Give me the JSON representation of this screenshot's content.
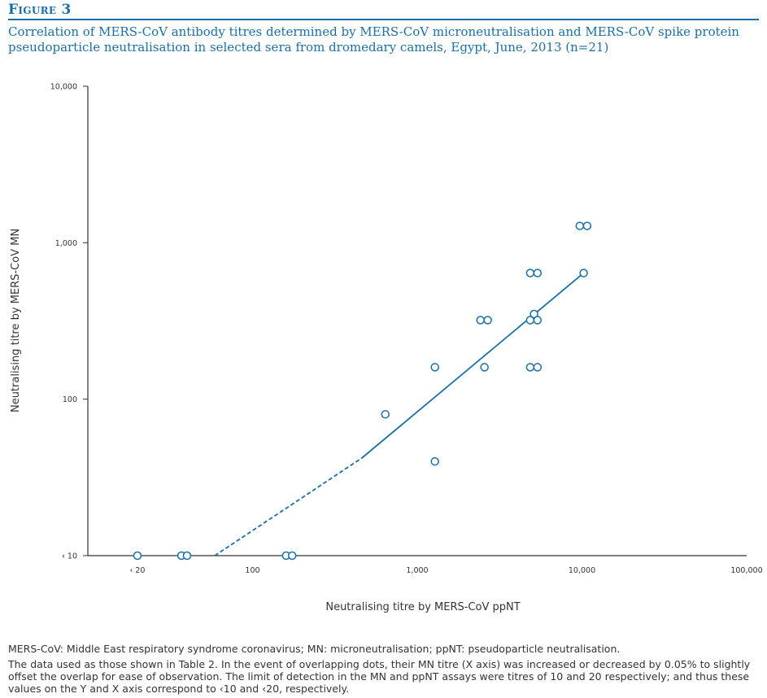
{
  "figure": {
    "label": "Figure 3",
    "caption": "Correlation of MERS-CoV antibody titres determined by MERS-CoV microneutralisation and MERS-CoV spike protein pseudoparticle neutralisation in selected sera from dromedary camels, Egypt, June, 2013 (n=21)"
  },
  "footnotes": {
    "abbreviations": "MERS-CoV: Middle East respiratory syndrome coronavirus; MN: microneutralisation; ppNT: pseudoparticle neutralisation.",
    "data_note": "The data used as those shown in Table 2. In the event of overlapping dots, their MN titre (X axis) was increased or decreased by 0.05% to slightly offset the overlap for ease of observation. The limit of detection in the MN and ppNT assays were titres of 10 and 20 respectively; and thus these values on the Y and X axis correspond to ‹10 and ‹20, respectively."
  },
  "colors": {
    "accent": "#1a6fa6",
    "axis": "#333333",
    "text": "#333333"
  },
  "chart_data": {
    "type": "scatter",
    "xlabel": "Neutralising titre by MERS-CoV ppNT",
    "ylabel": "Neutralising titre by MERS-CoV MN",
    "xscale": "log",
    "yscale": "log",
    "xlim": [
      10,
      100000
    ],
    "ylim": [
      10,
      10000
    ],
    "x_ticks": [
      {
        "value": 20,
        "label": "‹ 20"
      },
      {
        "value": 100,
        "label": "100"
      },
      {
        "value": 1000,
        "label": "1,000"
      },
      {
        "value": 10000,
        "label": "10,000"
      },
      {
        "value": 100000,
        "label": "100,000"
      }
    ],
    "y_ticks": [
      {
        "value": 10,
        "label": "‹ 10"
      },
      {
        "value": 100,
        "label": "100"
      },
      {
        "value": 1000,
        "label": "1,000"
      },
      {
        "value": 10000,
        "label": "10,000"
      }
    ],
    "points": [
      {
        "x": 20,
        "y": 10
      },
      {
        "x": 37,
        "y": 10
      },
      {
        "x": 40,
        "y": 10
      },
      {
        "x": 160,
        "y": 10
      },
      {
        "x": 174,
        "y": 10
      },
      {
        "x": 640,
        "y": 80
      },
      {
        "x": 1280,
        "y": 40
      },
      {
        "x": 1280,
        "y": 160
      },
      {
        "x": 2420,
        "y": 320
      },
      {
        "x": 2560,
        "y": 160
      },
      {
        "x": 2680,
        "y": 320
      },
      {
        "x": 4850,
        "y": 640
      },
      {
        "x": 4850,
        "y": 320
      },
      {
        "x": 4850,
        "y": 160
      },
      {
        "x": 5120,
        "y": 350
      },
      {
        "x": 5370,
        "y": 640
      },
      {
        "x": 5370,
        "y": 320
      },
      {
        "x": 5370,
        "y": 160
      },
      {
        "x": 9700,
        "y": 1280
      },
      {
        "x": 10240,
        "y": 640
      },
      {
        "x": 10750,
        "y": 1280
      }
    ],
    "fit_line": {
      "dashed_segment": [
        {
          "x": 59,
          "y": 10
        },
        {
          "x": 460,
          "y": 42
        }
      ],
      "solid_segment": [
        {
          "x": 460,
          "y": 42
        },
        {
          "x": 10240,
          "y": 640
        }
      ]
    },
    "grid": false,
    "legend": "none"
  }
}
